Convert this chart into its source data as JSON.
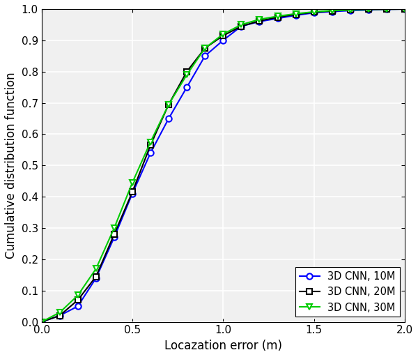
{
  "title": "",
  "xlabel": "Locazation error (m)",
  "ylabel": "Cumulative distribution function",
  "xlim": [
    0,
    2
  ],
  "ylim": [
    0,
    1
  ],
  "xticks": [
    0,
    0.5,
    1.0,
    1.5,
    2.0
  ],
  "yticks": [
    0,
    0.1,
    0.2,
    0.3,
    0.4,
    0.5,
    0.6,
    0.7,
    0.8,
    0.9,
    1.0
  ],
  "series": [
    {
      "label": "3D CNN, 10M",
      "color": "#0000FF",
      "marker": "o",
      "markersize": 6,
      "linewidth": 1.5,
      "x": [
        0.0,
        0.1,
        0.2,
        0.3,
        0.4,
        0.5,
        0.6,
        0.7,
        0.8,
        0.9,
        1.0,
        1.1,
        1.2,
        1.3,
        1.4,
        1.5,
        1.6,
        1.7,
        1.8,
        1.9,
        2.0
      ],
      "y": [
        0.0,
        0.02,
        0.05,
        0.14,
        0.27,
        0.41,
        0.54,
        0.65,
        0.75,
        0.85,
        0.9,
        0.945,
        0.96,
        0.97,
        0.98,
        0.988,
        0.992,
        0.995,
        0.997,
        0.999,
        1.0
      ]
    },
    {
      "label": "3D CNN, 20M",
      "color": "#000000",
      "marker": "s",
      "markersize": 6,
      "linewidth": 1.5,
      "x": [
        0.0,
        0.1,
        0.2,
        0.3,
        0.4,
        0.5,
        0.6,
        0.7,
        0.8,
        0.9,
        1.0,
        1.1,
        1.2,
        1.3,
        1.4,
        1.5,
        1.6,
        1.7,
        1.8,
        1.9,
        2.0
      ],
      "y": [
        0.0,
        0.02,
        0.07,
        0.145,
        0.28,
        0.415,
        0.565,
        0.695,
        0.8,
        0.875,
        0.915,
        0.945,
        0.962,
        0.974,
        0.983,
        0.99,
        0.994,
        0.997,
        0.999,
        0.9995,
        1.0
      ]
    },
    {
      "label": "3D CNN, 30M",
      "color": "#00CC00",
      "marker": "v",
      "markersize": 6,
      "linewidth": 1.5,
      "x": [
        0.0,
        0.1,
        0.2,
        0.3,
        0.4,
        0.5,
        0.6,
        0.7,
        0.8,
        0.9,
        1.0,
        1.1,
        1.2,
        1.3,
        1.4,
        1.5,
        1.6,
        1.7,
        1.8,
        1.9,
        2.0
      ],
      "y": [
        0.0,
        0.03,
        0.085,
        0.17,
        0.3,
        0.445,
        0.575,
        0.695,
        0.79,
        0.875,
        0.92,
        0.95,
        0.967,
        0.977,
        0.985,
        0.991,
        0.995,
        0.997,
        0.999,
        0.9995,
        1.0
      ]
    }
  ],
  "legend_loc": "lower right",
  "grid": true,
  "background_color": "#f0f0f0",
  "figsize": [
    6.0,
    5.12
  ],
  "dpi": 100
}
